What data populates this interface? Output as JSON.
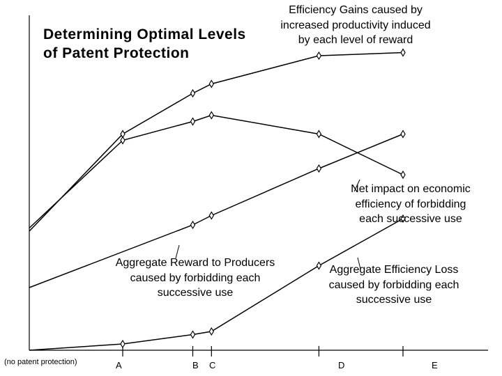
{
  "chart_data": {
    "type": "line",
    "title": "Determining Optimal Levels of Patent Protection",
    "x": [
      "(no patent protection)",
      "A",
      "B",
      "C",
      "D",
      "E"
    ],
    "x_values": [
      0,
      1,
      1.75,
      1.95,
      3.1,
      4
    ],
    "ylim": [
      0,
      100
    ],
    "series": [
      {
        "name": "Efficiency Gains caused by increased productivity induced by each level of reward",
        "values": [
          38,
          69,
          82,
          85,
          94,
          95
        ]
      },
      {
        "name": "Net impact on economic efficiency of forbidding each successive use",
        "values": [
          39,
          67,
          73,
          75,
          69,
          56
        ]
      },
      {
        "name": "Aggregate Reward to Producers caused by forbidding each successive use",
        "values": [
          20,
          null,
          40,
          43,
          58,
          69
        ]
      },
      {
        "name": "Aggregate Efficiency Loss caused by forbidding each successive use",
        "values": [
          0,
          2,
          5,
          6,
          27,
          42
        ]
      }
    ]
  },
  "title_lines": [
    "Determining Optimal Levels",
    "of Patent Protection"
  ],
  "annotations": {
    "gains": [
      "Efficiency Gains caused by",
      "increased productivity induced",
      "by each level of reward"
    ],
    "net": [
      "Net impact on economic",
      "efficiency of forbidding",
      "each successive use"
    ],
    "reward": [
      "Aggregate Reward to Producers",
      "caused by forbidding each",
      "successive use"
    ],
    "loss": [
      "Aggregate Efficiency Loss",
      "caused by forbidding each",
      "successive use"
    ]
  },
  "tick_labels": [
    "(no patent protection)",
    "A",
    "B",
    "C",
    "D",
    "E"
  ]
}
